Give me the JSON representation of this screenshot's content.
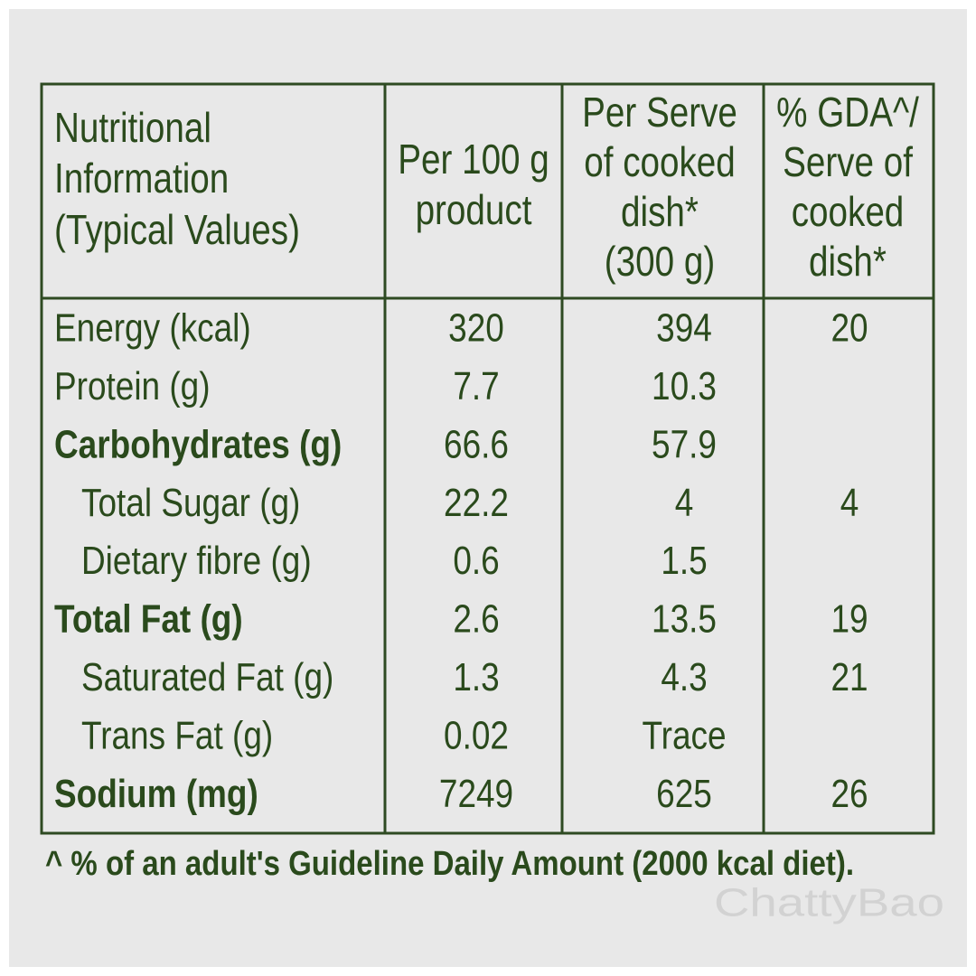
{
  "table": {
    "header": [
      [
        "Nutritional",
        "Information",
        "(Typical Values)"
      ],
      [
        "Per 100 g",
        "product"
      ],
      [
        "Per Serve",
        "of cooked",
        "dish*",
        "(300 g)"
      ],
      [
        "% GDA^/",
        "Serve of",
        "cooked",
        "dish*"
      ]
    ],
    "rows": [
      {
        "style": "bold-none",
        "cells": [
          "Energy (kcal)",
          "320",
          "394",
          "20"
        ]
      },
      {
        "style": "plain",
        "cells": [
          "Protein (g)",
          "7.7",
          "10.3",
          null
        ]
      },
      {
        "style": "bold",
        "cells": [
          "Carbohydrates (g)",
          "66.6",
          "57.9",
          null
        ]
      },
      {
        "style": "indent",
        "cells": [
          "Total Sugar (g)",
          "22.2",
          "4",
          "4"
        ]
      },
      {
        "style": "indent",
        "cells": [
          "Dietary fibre (g)",
          "0.6",
          "1.5",
          null
        ]
      },
      {
        "style": "bold",
        "cells": [
          "Total Fat (g)",
          "2.6",
          "13.5",
          "19"
        ]
      },
      {
        "style": "indent",
        "cells": [
          "Saturated Fat (g)",
          "1.3",
          "4.3",
          "21"
        ]
      },
      {
        "style": "indent",
        "cells": [
          "Trans Fat (g)",
          "0.02",
          "Trace",
          null
        ]
      },
      {
        "style": "bold",
        "cells": [
          "Sodium (mg)",
          "7249",
          "625",
          "26"
        ]
      }
    ],
    "footnote": "^ % of an adult's Guideline Daily Amount (2000 kcal diet).",
    "watermark": "ChattyBao"
  }
}
